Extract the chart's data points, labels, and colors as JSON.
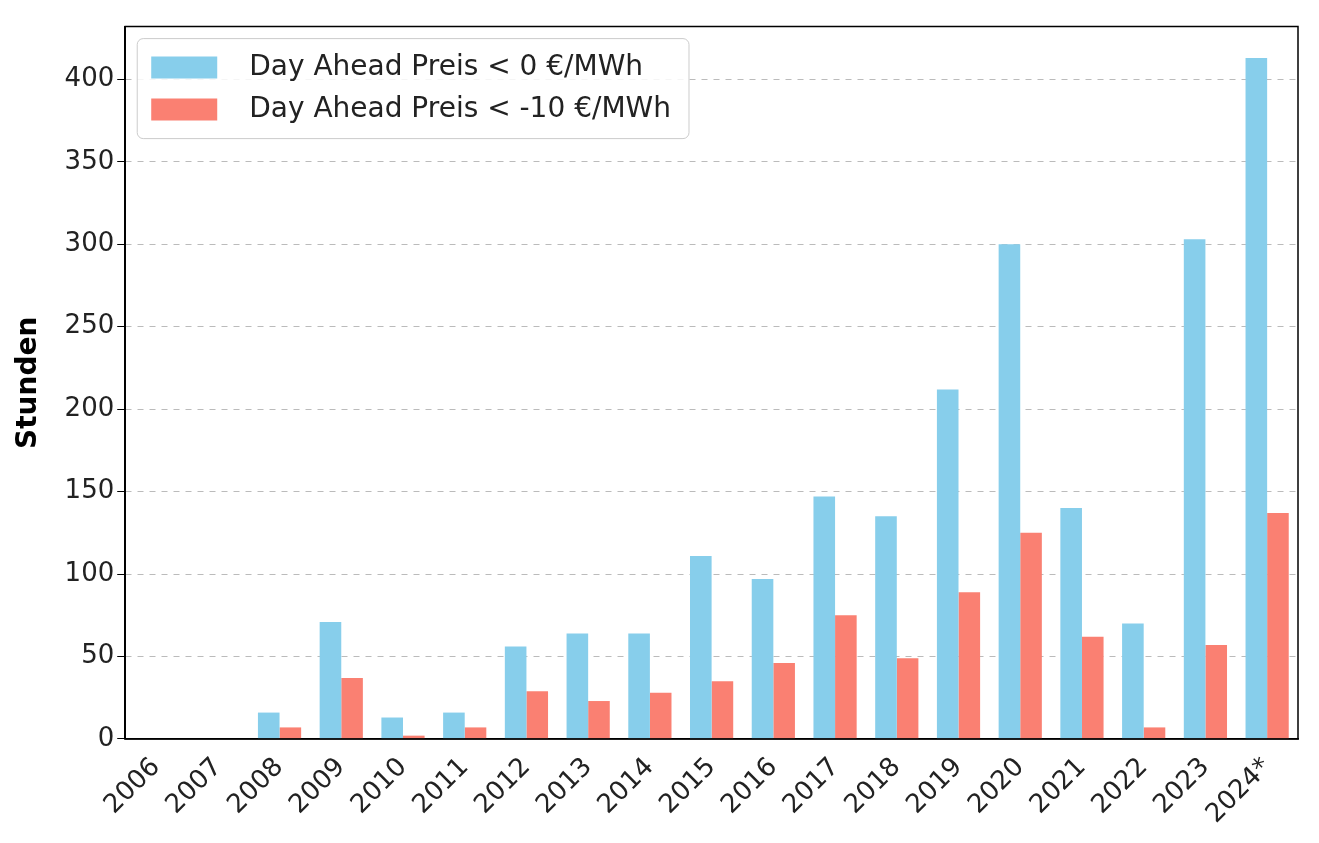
{
  "chart_data": {
    "type": "bar",
    "ylabel": "Stunden",
    "categories": [
      "2006",
      "2007",
      "2008",
      "2009",
      "2010",
      "2011",
      "2012",
      "2013",
      "2014",
      "2015",
      "2016",
      "2017",
      "2018",
      "2019",
      "2020",
      "2021",
      "2022",
      "2023",
      "2024*"
    ],
    "series": [
      {
        "name": "Day Ahead Preis < 0 €/MWh",
        "color": "#87ceeb",
        "values": [
          0,
          0,
          16,
          71,
          13,
          16,
          56,
          64,
          64,
          111,
          97,
          147,
          135,
          212,
          300,
          140,
          70,
          303,
          413
        ]
      },
      {
        "name": "Day Ahead Preis < -10 €/MWh",
        "color": "#fa8072",
        "values": [
          0,
          0,
          7,
          37,
          2,
          7,
          29,
          23,
          28,
          35,
          46,
          75,
          49,
          89,
          125,
          62,
          7,
          57,
          137
        ]
      }
    ],
    "ylim": [
      0,
      432
    ],
    "yticks": [
      0,
      50,
      100,
      150,
      200,
      250,
      300,
      350,
      400
    ],
    "grid": "y",
    "legend": "top left"
  }
}
